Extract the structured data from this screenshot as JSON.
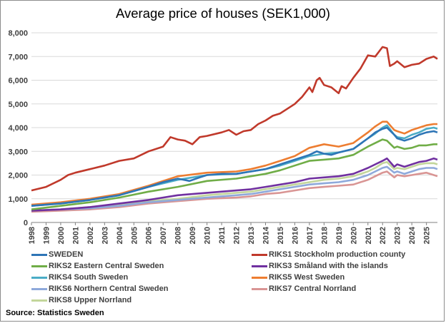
{
  "source": "Source: Statistics Sweden",
  "chart_data": {
    "type": "line",
    "title": "Average price of houses (SEK1,000)",
    "xlabel": "",
    "ylabel": "",
    "ylim": [
      0,
      8000
    ],
    "xlim": [
      1998,
      2025.75
    ],
    "yticks": [
      "0",
      "1,000",
      "2,000",
      "3,000",
      "4,000",
      "5,000",
      "6,000",
      "7,000",
      "8,000"
    ],
    "xticks": [
      "1998",
      "1999",
      "2000",
      "2001",
      "2002",
      "2003",
      "2004",
      "2005",
      "2006",
      "2007",
      "2008",
      "2009",
      "2010",
      "2011",
      "2012",
      "2013",
      "2014",
      "2015",
      "2016",
      "2017",
      "2018",
      "2019",
      "2020",
      "2021",
      "2022",
      "2023",
      "2024",
      "2025"
    ],
    "grid": true,
    "legend_position": "bottom",
    "series": [
      {
        "name": "SWEDEN",
        "color": "#2e75b6",
        "x": [
          1998,
          2000,
          2002,
          2004,
          2006,
          2007,
          2008,
          2008.8,
          2009.5,
          2010,
          2011,
          2012,
          2013,
          2014,
          2015,
          2016,
          2017,
          2017.5,
          2018,
          2018.5,
          2019,
          2020,
          2021,
          2021.5,
          2022,
          2022.3,
          2022.8,
          2023,
          2023.5,
          2024,
          2024.5,
          2025,
          2025.5,
          2025.75
        ],
        "y": [
          700,
          800,
          950,
          1150,
          1500,
          1700,
          1850,
          1750,
          1900,
          2000,
          2050,
          2050,
          2150,
          2250,
          2450,
          2650,
          2850,
          3000,
          2900,
          2850,
          2950,
          3100,
          3550,
          3800,
          3950,
          4000,
          3700,
          3550,
          3450,
          3550,
          3700,
          3800,
          3850,
          3800
        ]
      },
      {
        "name": "RIKS1 Stockholm production county",
        "color": "#c0392b",
        "x": [
          1998,
          1999,
          2000,
          2000.5,
          2001,
          2002,
          2003,
          2004,
          2005,
          2006,
          2007,
          2007.5,
          2008,
          2008.5,
          2009,
          2009.5,
          2010,
          2011,
          2011.5,
          2012,
          2012.5,
          2013,
          2013.5,
          2014,
          2014.5,
          2015,
          2015.5,
          2016,
          2016.5,
          2017,
          2017.2,
          2017.5,
          2017.7,
          2018,
          2018.5,
          2019,
          2019.2,
          2019.5,
          2020,
          2020.5,
          2021,
          2021.5,
          2022,
          2022.3,
          2022.5,
          2022.8,
          2023,
          2023.5,
          2024,
          2024.5,
          2025,
          2025.5,
          2025.75
        ],
        "y": [
          1350,
          1500,
          1800,
          2000,
          2100,
          2250,
          2400,
          2600,
          2700,
          3000,
          3200,
          3600,
          3500,
          3450,
          3300,
          3600,
          3650,
          3800,
          3900,
          3700,
          3850,
          3900,
          4150,
          4300,
          4500,
          4600,
          4800,
          5000,
          5300,
          5700,
          5500,
          6000,
          6100,
          5800,
          5700,
          5450,
          5750,
          5650,
          6100,
          6500,
          7050,
          7000,
          7400,
          7350,
          6600,
          6700,
          6800,
          6550,
          6650,
          6700,
          6900,
          7000,
          6900
        ]
      },
      {
        "name": "RIKS2 Eastern Central Sweden",
        "color": "#70ad47",
        "x": [
          1998,
          2000,
          2002,
          2004,
          2006,
          2008,
          2010,
          2012,
          2013,
          2014,
          2015,
          2016,
          2017,
          2018,
          2019,
          2020,
          2021,
          2021.5,
          2022,
          2022.3,
          2022.8,
          2023,
          2023.5,
          2024,
          2024.5,
          2025,
          2025.5,
          2025.75
        ],
        "y": [
          550,
          700,
          850,
          1050,
          1300,
          1500,
          1750,
          1850,
          1950,
          2050,
          2200,
          2400,
          2600,
          2650,
          2700,
          2850,
          3200,
          3350,
          3500,
          3450,
          3150,
          3200,
          3100,
          3150,
          3250,
          3250,
          3300,
          3300
        ]
      },
      {
        "name": "RIKS3 Småland with the islands",
        "color": "#7030a0",
        "x": [
          1998,
          2000,
          2002,
          2004,
          2006,
          2008,
          2010,
          2012,
          2013,
          2014,
          2015,
          2016,
          2017,
          2018,
          2019,
          2020,
          2021,
          2021.5,
          2022,
          2022.3,
          2022.8,
          2023,
          2023.5,
          2024,
          2024.5,
          2025,
          2025.5,
          2025.75
        ],
        "y": [
          500,
          550,
          650,
          800,
          950,
          1150,
          1250,
          1350,
          1400,
          1500,
          1600,
          1700,
          1850,
          1900,
          1950,
          2050,
          2300,
          2450,
          2600,
          2700,
          2350,
          2450,
          2350,
          2450,
          2550,
          2600,
          2700,
          2650
        ]
      },
      {
        "name": "RIKS4 South Sweden",
        "color": "#4bacc6",
        "x": [
          1998,
          2000,
          2002,
          2004,
          2006,
          2008,
          2010,
          2012,
          2013,
          2014,
          2015,
          2016,
          2017,
          2018,
          2019,
          2020,
          2021,
          2021.5,
          2022,
          2022.3,
          2022.8,
          2023,
          2023.5,
          2024,
          2024.5,
          2025,
          2025.5,
          2025.75
        ],
        "y": [
          700,
          800,
          950,
          1150,
          1500,
          1800,
          2000,
          2050,
          2150,
          2250,
          2400,
          2600,
          2800,
          2900,
          2950,
          3100,
          3550,
          3750,
          4000,
          4100,
          3700,
          3600,
          3550,
          3700,
          3800,
          3950,
          4000,
          3950
        ]
      },
      {
        "name": "RIKS5 West Sweden",
        "color": "#ed7d31",
        "x": [
          1998,
          2000,
          2002,
          2004,
          2006,
          2008,
          2010,
          2012,
          2013,
          2014,
          2015,
          2016,
          2017,
          2018,
          2019,
          2020,
          2021,
          2021.5,
          2022,
          2022.3,
          2022.8,
          2023,
          2023.5,
          2024,
          2024.5,
          2025,
          2025.5,
          2025.75
        ],
        "y": [
          750,
          850,
          1000,
          1200,
          1550,
          1950,
          2100,
          2150,
          2250,
          2400,
          2600,
          2800,
          3150,
          3300,
          3200,
          3350,
          3800,
          4050,
          4250,
          4250,
          3900,
          3850,
          3750,
          3900,
          4000,
          4100,
          4150,
          4150
        ]
      },
      {
        "name": "RIKS6 Northern Central Sweden",
        "color": "#8ea9db",
        "x": [
          1998,
          2000,
          2002,
          2004,
          2006,
          2008,
          2010,
          2012,
          2013,
          2014,
          2015,
          2016,
          2017,
          2018,
          2019,
          2020,
          2021,
          2021.5,
          2022,
          2022.3,
          2022.8,
          2023,
          2023.5,
          2024,
          2024.5,
          2025,
          2025.5,
          2025.75
        ],
        "y": [
          500,
          550,
          600,
          700,
          850,
          950,
          1050,
          1150,
          1200,
          1300,
          1400,
          1500,
          1600,
          1650,
          1700,
          1800,
          2000,
          2150,
          2300,
          2350,
          2100,
          2150,
          2050,
          2150,
          2250,
          2300,
          2300,
          2250
        ]
      },
      {
        "name": "RIKS7 Central Norrland",
        "color": "#d99594",
        "x": [
          1998,
          2000,
          2002,
          2004,
          2006,
          2008,
          2010,
          2012,
          2013,
          2014,
          2015,
          2016,
          2017,
          2018,
          2019,
          2020,
          2021,
          2021.5,
          2022,
          2022.3,
          2022.8,
          2023,
          2023.5,
          2024,
          2024.5,
          2025,
          2025.5,
          2025.75
        ],
        "y": [
          450,
          500,
          550,
          650,
          800,
          900,
          1000,
          1050,
          1100,
          1200,
          1250,
          1350,
          1450,
          1500,
          1550,
          1600,
          1800,
          1950,
          2100,
          2150,
          1900,
          2000,
          1950,
          2000,
          2050,
          2100,
          2000,
          1950
        ]
      },
      {
        "name": "RIKS8 Upper Norrland",
        "color": "#c3d69b",
        "x": [
          1998,
          2000,
          2002,
          2004,
          2006,
          2008,
          2010,
          2012,
          2013,
          2014,
          2015,
          2016,
          2017,
          2018,
          2019,
          2020,
          2021,
          2021.5,
          2022,
          2022.3,
          2022.8,
          2023,
          2023.5,
          2024,
          2024.5,
          2025,
          2025.5,
          2025.75
        ],
        "y": [
          500,
          550,
          650,
          750,
          900,
          1000,
          1150,
          1250,
          1300,
          1400,
          1500,
          1600,
          1700,
          1800,
          1850,
          1950,
          2150,
          2300,
          2500,
          2550,
          2250,
          2300,
          2250,
          2350,
          2450,
          2500,
          2500,
          2450
        ]
      }
    ]
  }
}
